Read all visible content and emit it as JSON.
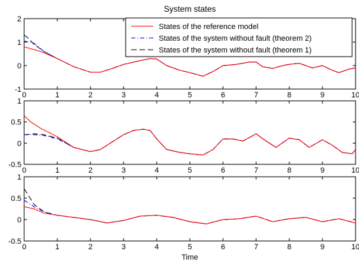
{
  "figure": {
    "title": "System states",
    "xlabel": "Time",
    "legend": [
      {
        "label": "States of the reference model",
        "color": "#ff0000",
        "dash": "solid"
      },
      {
        "label": "States of the system without fault (theorem 2)",
        "color": "#0000ff",
        "dash": "dashdot"
      },
      {
        "label": "States of the system without fault (theorem 1)",
        "color": "#000000",
        "dash": "dashed"
      }
    ]
  },
  "chart_data": [
    {
      "type": "line",
      "xlim": [
        0,
        10
      ],
      "ylim": [
        -1,
        2
      ],
      "xticks": [
        "0",
        "1",
        "2",
        "3",
        "4",
        "5",
        "6",
        "7",
        "8",
        "9",
        "10"
      ],
      "yticks": [
        "-1",
        "0",
        "1",
        "2"
      ],
      "legend_position": "top-right",
      "series": [
        {
          "name": "States of the reference model",
          "color": "#ff0000",
          "x": [
            0,
            0.5,
            1,
            1.5,
            2,
            2.3,
            2.6,
            3,
            3.4,
            3.8,
            4.0,
            4.3,
            4.7,
            5.0,
            5.4,
            5.7,
            6.0,
            6.4,
            6.8,
            7.0,
            7.2,
            7.5,
            7.8,
            8.0,
            8.3,
            8.5,
            8.7,
            9.0,
            9.3,
            9.5,
            9.8,
            10
          ],
          "y": [
            0.8,
            0.6,
            0.3,
            -0.05,
            -0.28,
            -0.28,
            -0.15,
            0.05,
            0.18,
            0.3,
            0.28,
            0.0,
            -0.2,
            -0.3,
            -0.45,
            -0.25,
            0.0,
            0.05,
            0.15,
            0.15,
            -0.05,
            -0.12,
            0.0,
            0.05,
            0.1,
            0.0,
            -0.1,
            0.0,
            -0.2,
            -0.3,
            -0.15,
            -0.1
          ]
        },
        {
          "name": "States of the system without fault (theorem 2)",
          "color": "#0000ff",
          "x": [
            0,
            0.3,
            0.6,
            1,
            1.5,
            2,
            2.3,
            2.6,
            3,
            3.4,
            3.8,
            4.0,
            4.3,
            4.7,
            5.0,
            5.4,
            5.7,
            6.0,
            6.4,
            6.8,
            7.0,
            7.2,
            7.5,
            7.8,
            8.0,
            8.3,
            8.5,
            8.7,
            9.0,
            9.3,
            9.5,
            9.8,
            10
          ],
          "y": [
            1.05,
            0.95,
            0.6,
            0.3,
            -0.05,
            -0.28,
            -0.28,
            -0.15,
            0.05,
            0.18,
            0.3,
            0.28,
            0.0,
            -0.2,
            -0.3,
            -0.45,
            -0.25,
            0.0,
            0.05,
            0.15,
            0.15,
            -0.05,
            -0.12,
            0.0,
            0.05,
            0.1,
            0.0,
            -0.1,
            0.0,
            -0.2,
            -0.3,
            -0.15,
            -0.1
          ]
        },
        {
          "name": "States of the system without fault (theorem 1)",
          "color": "#000000",
          "x": [
            0,
            0.1,
            0.3,
            0.6,
            1,
            1.5,
            2,
            2.3,
            2.6,
            3,
            3.4,
            3.8,
            4.0,
            4.3,
            4.7,
            5.0,
            5.4,
            5.7,
            6.0,
            6.4,
            6.8,
            7.0,
            7.2,
            7.5,
            7.8,
            8.0,
            8.3,
            8.5,
            8.7,
            9.0,
            9.3,
            9.5,
            9.8,
            10
          ],
          "y": [
            1.3,
            1.2,
            0.9,
            0.6,
            0.3,
            -0.05,
            -0.28,
            -0.28,
            -0.15,
            0.05,
            0.18,
            0.3,
            0.28,
            0.0,
            -0.2,
            -0.3,
            -0.45,
            -0.25,
            0.0,
            0.05,
            0.15,
            0.15,
            -0.05,
            -0.12,
            0.0,
            0.05,
            0.1,
            0.0,
            -0.1,
            0.0,
            -0.2,
            -0.3,
            -0.15,
            -0.1
          ]
        }
      ]
    },
    {
      "type": "line",
      "xlim": [
        0,
        10
      ],
      "ylim": [
        -0.5,
        1
      ],
      "xticks": [
        "0",
        "1",
        "2",
        "3",
        "4",
        "5",
        "6",
        "7",
        "8",
        "9",
        "10"
      ],
      "yticks": [
        "-0.5",
        "0",
        "0.5",
        "1"
      ],
      "series": [
        {
          "name": "States of the reference model",
          "color": "#ff0000",
          "x": [
            0,
            0.2,
            0.5,
            1,
            1.5,
            2,
            2.3,
            2.6,
            3,
            3.3,
            3.6,
            3.8,
            4.0,
            4.3,
            4.7,
            5.0,
            5.4,
            5.7,
            6.0,
            6.3,
            6.6,
            7.0,
            7.3,
            7.6,
            8.0,
            8.3,
            8.6,
            9.0,
            9.3,
            9.6,
            9.9,
            10
          ],
          "y": [
            0.65,
            0.5,
            0.35,
            0.15,
            -0.1,
            -0.2,
            -0.15,
            0.0,
            0.2,
            0.3,
            0.33,
            0.3,
            0.1,
            -0.15,
            -0.22,
            -0.25,
            -0.28,
            -0.15,
            0.1,
            0.1,
            0.05,
            0.22,
            0.05,
            -0.1,
            0.12,
            0.08,
            -0.1,
            0.08,
            -0.05,
            -0.22,
            -0.25,
            -0.15
          ]
        },
        {
          "name": "States of the system without fault (theorem 2)",
          "color": "#0000ff",
          "x": [
            0,
            0.3,
            0.6,
            1,
            1.5,
            2,
            2.3,
            2.6,
            3,
            3.3,
            3.6,
            3.8,
            4.0,
            4.3,
            4.7,
            5.0,
            5.4,
            5.7,
            6.0,
            6.3,
            6.6,
            7.0,
            7.3,
            7.6,
            8.0,
            8.3,
            8.6,
            9.0,
            9.3,
            9.6,
            9.9,
            10
          ],
          "y": [
            0.2,
            0.2,
            0.18,
            0.1,
            -0.1,
            -0.2,
            -0.15,
            0.0,
            0.2,
            0.3,
            0.33,
            0.3,
            0.1,
            -0.15,
            -0.22,
            -0.25,
            -0.28,
            -0.15,
            0.1,
            0.1,
            0.05,
            0.22,
            0.05,
            -0.1,
            0.12,
            0.08,
            -0.1,
            0.08,
            -0.05,
            -0.22,
            -0.25,
            -0.15
          ]
        },
        {
          "name": "States of the system without fault (theorem 1)",
          "color": "#000000",
          "x": [
            0,
            0.3,
            0.6,
            1,
            1.5,
            2,
            2.3,
            2.6,
            3,
            3.3,
            3.6,
            3.8,
            4.0,
            4.3,
            4.7,
            5.0,
            5.4,
            5.7,
            6.0,
            6.3,
            6.6,
            7.0,
            7.3,
            7.6,
            8.0,
            8.3,
            8.6,
            9.0,
            9.3,
            9.6,
            9.9,
            10
          ],
          "y": [
            0.2,
            0.22,
            0.2,
            0.12,
            -0.1,
            -0.2,
            -0.15,
            0.0,
            0.2,
            0.3,
            0.33,
            0.3,
            0.1,
            -0.15,
            -0.22,
            -0.25,
            -0.28,
            -0.15,
            0.1,
            0.1,
            0.05,
            0.22,
            0.05,
            -0.1,
            0.12,
            0.08,
            -0.1,
            0.08,
            -0.05,
            -0.22,
            -0.25,
            -0.15
          ]
        }
      ]
    },
    {
      "type": "line",
      "xlim": [
        0,
        10
      ],
      "ylim": [
        -0.5,
        1
      ],
      "xticks": [
        "0",
        "1",
        "2",
        "3",
        "4",
        "5",
        "6",
        "7",
        "8",
        "9",
        "10"
      ],
      "yticks": [
        "-0.5",
        "0",
        "0.5",
        "1"
      ],
      "series": [
        {
          "name": "States of the reference model",
          "color": "#ff0000",
          "x": [
            0,
            0.3,
            0.6,
            1,
            1.5,
            2,
            2.5,
            3,
            3.5,
            4,
            4.5,
            5,
            5.5,
            6,
            6.5,
            7,
            7.5,
            8,
            8.5,
            9,
            9.5,
            10
          ],
          "y": [
            0.3,
            0.25,
            0.15,
            0.1,
            0.05,
            0.0,
            -0.08,
            -0.02,
            0.08,
            0.1,
            0.05,
            -0.05,
            -0.1,
            0.0,
            0.02,
            0.08,
            -0.05,
            0.02,
            0.05,
            -0.05,
            0.02,
            -0.08
          ]
        },
        {
          "name": "States of the system without fault (theorem 2)",
          "color": "#0000ff",
          "x": [
            0,
            0.3,
            0.6,
            1,
            1.5,
            2,
            2.5,
            3,
            3.5,
            4,
            4.5,
            5,
            5.5,
            6,
            6.5,
            7,
            7.5,
            8,
            8.5,
            9,
            9.5,
            10
          ],
          "y": [
            0.45,
            0.3,
            0.18,
            0.1,
            0.05,
            0.0,
            -0.08,
            -0.02,
            0.08,
            0.1,
            0.05,
            -0.05,
            -0.1,
            0.0,
            0.02,
            0.08,
            -0.05,
            0.02,
            0.05,
            -0.05,
            0.02,
            -0.08
          ]
        },
        {
          "name": "States of the system without fault (theorem 1)",
          "color": "#000000",
          "x": [
            0,
            0.1,
            0.3,
            0.6,
            1,
            1.5,
            2,
            2.5,
            3,
            3.5,
            4,
            4.5,
            5,
            5.5,
            6,
            6.5,
            7,
            7.5,
            8,
            8.5,
            9,
            9.5,
            10
          ],
          "y": [
            0.72,
            0.6,
            0.35,
            0.18,
            0.1,
            0.05,
            0.0,
            -0.08,
            -0.02,
            0.08,
            0.1,
            0.05,
            -0.05,
            -0.1,
            0.0,
            0.02,
            0.08,
            -0.05,
            0.02,
            0.05,
            -0.05,
            0.02,
            -0.08
          ]
        }
      ]
    }
  ]
}
